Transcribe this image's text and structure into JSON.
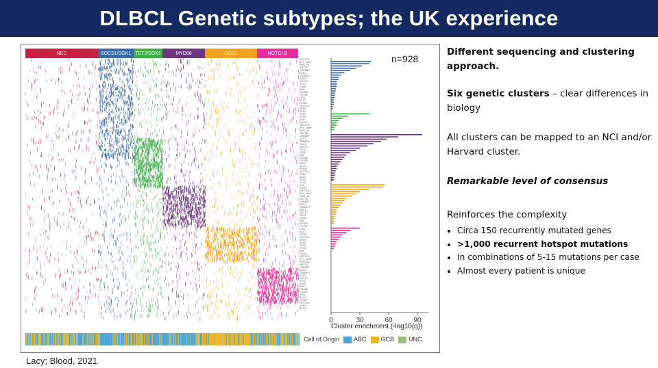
{
  "title": "DLBCL Genetic subtypes; the UK experience",
  "figure": {
    "n_label": "n=928",
    "clusters": [
      {
        "name": "NEC",
        "color": "#c8203f"
      },
      {
        "name": "SOCS1/SGK1",
        "color": "#3a69a8"
      },
      {
        "name": "TET2/SGK1",
        "color": "#3fae49"
      },
      {
        "name": "MYD88",
        "color": "#6b3580"
      },
      {
        "name": "BCL2",
        "color": "#f0a21c"
      },
      {
        "name": "NOTCH2",
        "color": "#e52f9a"
      }
    ],
    "bar_axis": {
      "ticks": [
        "0",
        "30",
        "60",
        "90"
      ],
      "label": "Cluster enrichment (-log10(q))"
    },
    "cell_of_origin": {
      "label": "Cell of Origin",
      "items": [
        {
          "name": "ABC",
          "color": "#4aa3d8"
        },
        {
          "name": "GCB",
          "color": "#f3b41f"
        },
        {
          "name": "UNC",
          "color": "#9fbf7c"
        }
      ]
    }
  },
  "panel": {
    "p1": "Different sequencing and clustering approach.",
    "p2_bold": "Six genetic clusters",
    "p2_rest": " – clear differences in biology",
    "p3": "All clusters can be mapped to an NCI and/or Harvard cluster.",
    "p4": "Remarkable level of consensus",
    "p5": "Reinforces the complexity",
    "bullets": [
      "Circa 150 recurrently mutated genes",
      ">1,000 recurrent hotspot mutations",
      "In combinations of 5-15 mutations per case",
      "Almost every patient is unique"
    ]
  },
  "citation": "Lacy; Blood, 2021"
}
